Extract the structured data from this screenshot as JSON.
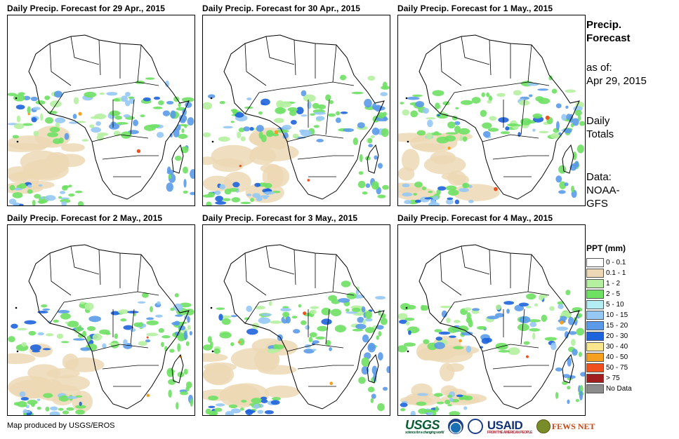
{
  "panels": [
    {
      "title": "Daily Precip. Forecast for 29 Apr., 2015"
    },
    {
      "title": "Daily Precip. Forecast for 30 Apr., 2015"
    },
    {
      "title": "Daily Precip. Forecast for 1 May., 2015"
    },
    {
      "title": "Daily Precip. Forecast for 2 May., 2015"
    },
    {
      "title": "Daily Precip. Forecast for 3 May., 2015"
    },
    {
      "title": "Daily Precip. Forecast for 4 May., 2015"
    }
  ],
  "sidebar": {
    "title_line1": "Precip.",
    "title_line2": "Forecast",
    "asof_line1": "as of:",
    "asof_line2": "Apr 29, 2015",
    "totals_line1": "Daily",
    "totals_line2": "Totals",
    "source_line1": "Data:",
    "source_line2": "NOAA-",
    "source_line3": "GFS"
  },
  "legend": {
    "title": "PPT (mm)",
    "items": [
      {
        "label": "0 - 0.1",
        "color": "#ffffff"
      },
      {
        "label": "0.1 - 1",
        "color": "#ecd8b4"
      },
      {
        "label": "1 - 2",
        "color": "#b4f0a0"
      },
      {
        "label": "2 - 5",
        "color": "#6ee064"
      },
      {
        "label": "5 - 10",
        "color": "#b4ecf4"
      },
      {
        "label": "10 - 15",
        "color": "#96c8f4"
      },
      {
        "label": "15 - 20",
        "color": "#5a9ae8"
      },
      {
        "label": "20 - 30",
        "color": "#1e64dc"
      },
      {
        "label": "30 - 40",
        "color": "#fae68c"
      },
      {
        "label": "40 - 50",
        "color": "#f5a01e"
      },
      {
        "label": "50 - 75",
        "color": "#f0501e"
      },
      {
        "label": "> 75",
        "color": "#a01e1e"
      },
      {
        "label": "No Data",
        "color": "#8c8c8c"
      }
    ]
  },
  "footer": {
    "credit": "Map produced by USGS/EROS"
  },
  "logos": {
    "usgs": "USGS",
    "usgs_tagline": "science for a changing world",
    "usaid": "USAID",
    "usaid_tagline": "FROM THE AMERICAN PEOPLE",
    "fews": "FEWS NET"
  }
}
